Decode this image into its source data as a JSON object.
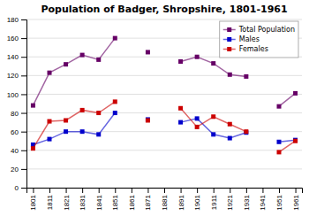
{
  "chart_data": {
    "type": "line",
    "title": "Population of Badger, Shropshire, 1801-1961",
    "x": [
      1801,
      1811,
      1821,
      1831,
      1841,
      1851,
      1861,
      1871,
      1881,
      1891,
      1901,
      1911,
      1921,
      1931,
      1941,
      1951,
      1961
    ],
    "series": [
      {
        "name": "Total Population",
        "color": "#660066",
        "marker": "square",
        "values": [
          88,
          123,
          132,
          142,
          137,
          160,
          null,
          145,
          null,
          135,
          140,
          133,
          121,
          119,
          null,
          87,
          101
        ]
      },
      {
        "name": "Males",
        "color": "#0000cc",
        "marker": "square",
        "values": [
          46,
          52,
          60,
          60,
          57,
          80,
          null,
          73,
          null,
          70,
          74,
          57,
          53,
          59,
          null,
          49,
          51
        ]
      },
      {
        "name": "Females",
        "color": "#cc0000",
        "marker": "square",
        "values": [
          42,
          71,
          72,
          83,
          80,
          92,
          null,
          72,
          null,
          85,
          65,
          76,
          68,
          60,
          null,
          38,
          50
        ]
      }
    ],
    "xlim": [
      1797,
      1965
    ],
    "xticks": [
      1801,
      1811,
      1821,
      1831,
      1841,
      1851,
      1861,
      1871,
      1881,
      1891,
      1901,
      1911,
      1921,
      1931,
      1941,
      1951,
      1961
    ],
    "ylim": [
      0,
      180
    ],
    "yticks": [
      0,
      20,
      40,
      60,
      80,
      100,
      120,
      140,
      160,
      180
    ],
    "grid": "y",
    "legend": "top-right"
  }
}
